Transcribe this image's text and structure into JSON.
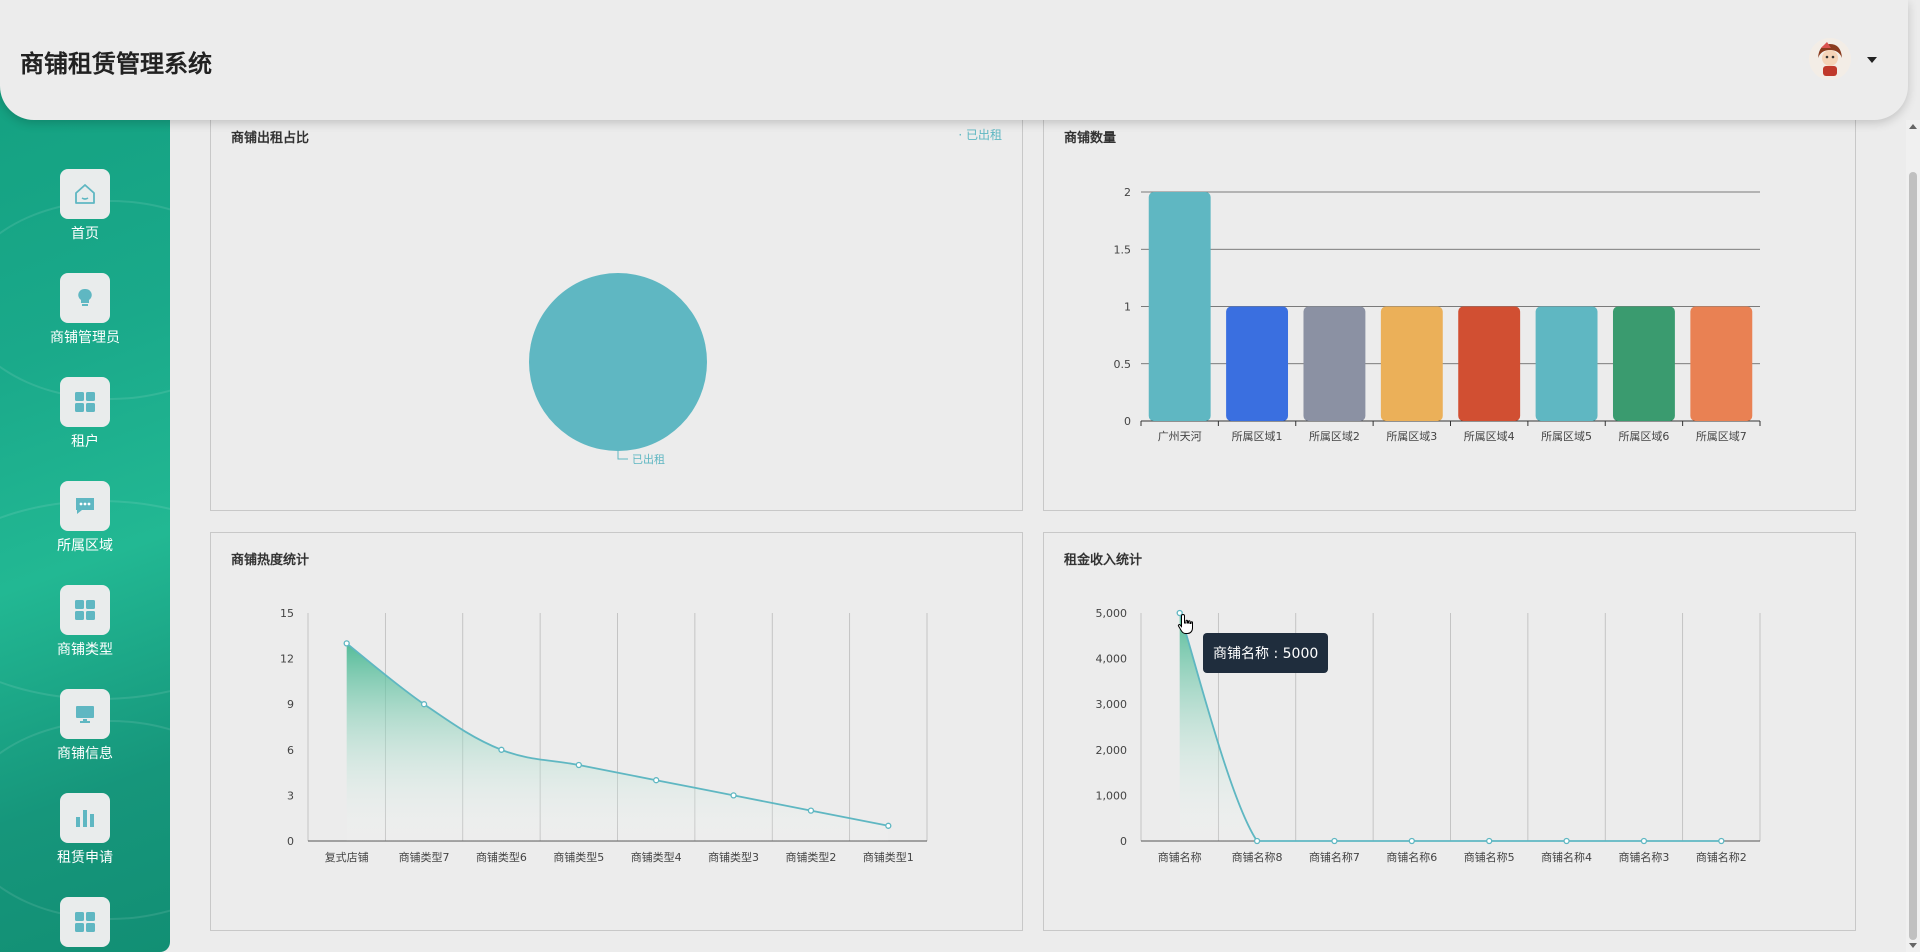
{
  "header": {
    "title": "商铺租赁管理系统",
    "avatar_icon": "user-avatar",
    "caret_icon": "caret-down-icon"
  },
  "sidebar": {
    "items": [
      {
        "label": "首页",
        "icon": "home-icon"
      },
      {
        "label": "商铺管理员",
        "icon": "bulb-icon"
      },
      {
        "label": "租户",
        "icon": "grid-icon"
      },
      {
        "label": "所属区域",
        "icon": "chat-icon"
      },
      {
        "label": "商铺类型",
        "icon": "grid-icon"
      },
      {
        "label": "商铺信息",
        "icon": "monitor-icon"
      },
      {
        "label": "租赁申请",
        "icon": "bar-chart-icon"
      },
      {
        "label": "",
        "icon": "grid-icon"
      }
    ]
  },
  "colors": {
    "accent": "#5fb7c2",
    "sidebar": "#1aa98a"
  },
  "panels": {
    "rent_ratio": {
      "title": "商铺出租占比",
      "legend": "已出租"
    },
    "shop_count": {
      "title": "商铺数量"
    },
    "heat": {
      "title": "商铺热度统计"
    },
    "income": {
      "title": "租金收入统计"
    }
  },
  "tooltip": {
    "label": "商铺名称",
    "separator": " : ",
    "value": "5000"
  },
  "chart_data": [
    {
      "id": "rent_ratio",
      "type": "pie",
      "title": "商铺出租占比",
      "labels": [
        "已出租"
      ],
      "values": [
        1
      ],
      "colors": [
        "#5fb7c2"
      ]
    },
    {
      "id": "shop_count",
      "type": "bar",
      "title": "商铺数量",
      "categories": [
        "广州天河",
        "所属区域1",
        "所属区域2",
        "所属区域3",
        "所属区域4",
        "所属区域5",
        "所属区域6",
        "所属区域7"
      ],
      "values": [
        2,
        1,
        1,
        1,
        1,
        1,
        1,
        1
      ],
      "colors": [
        "#5fb7c2",
        "#3a6fe0",
        "#8b91a3",
        "#ebb059",
        "#d14f32",
        "#5fb7c2",
        "#3a9b6f",
        "#e98153"
      ],
      "yticks": [
        "0",
        "0.5",
        "1",
        "1.5",
        "2"
      ],
      "ylim": [
        0,
        2
      ]
    },
    {
      "id": "heat",
      "type": "area",
      "title": "商铺热度统计",
      "categories": [
        "复式店铺",
        "商铺类型7",
        "商铺类型6",
        "商铺类型5",
        "商铺类型4",
        "商铺类型3",
        "商铺类型2",
        "商铺类型1"
      ],
      "values": [
        13,
        9,
        6,
        5,
        4,
        3,
        2,
        1
      ],
      "yticks": [
        "0",
        "3",
        "6",
        "9",
        "12",
        "15"
      ],
      "ylim": [
        0,
        15
      ]
    },
    {
      "id": "income",
      "type": "area",
      "title": "租金收入统计",
      "categories": [
        "商铺名称",
        "商铺名称8",
        "商铺名称7",
        "商铺名称6",
        "商铺名称5",
        "商铺名称4",
        "商铺名称3",
        "商铺名称2"
      ],
      "values": [
        5000,
        0,
        0,
        0,
        0,
        0,
        0,
        0
      ],
      "yticks": [
        "0",
        "1,000",
        "2,000",
        "3,000",
        "4,000",
        "5,000"
      ],
      "ylim": [
        0,
        5000
      ]
    }
  ]
}
